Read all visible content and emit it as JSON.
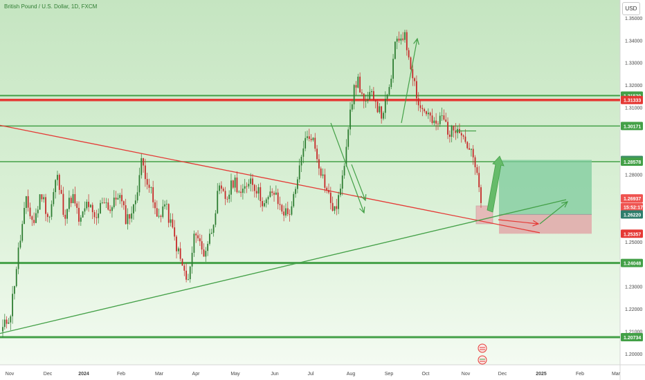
{
  "header": {
    "title": "British Pound / U.S. Dollar, 1D, FXCM",
    "currency_button": "USD"
  },
  "chart_data": {
    "type": "candlestick",
    "symbol": "British Pound / U.S. Dollar",
    "interval": "1D",
    "exchange": "FXCM",
    "currency": "USD",
    "x_ticks": [
      "Nov",
      "Dec",
      "2024",
      "Feb",
      "Mar",
      "Apr",
      "May",
      "Jun",
      "Jul",
      "Aug",
      "Sep",
      "Oct",
      "Nov",
      "Dec",
      "2025",
      "Feb",
      "Mar"
    ],
    "y_ticks": [
      "1.20000",
      "1.21000",
      "1.22000",
      "1.23000",
      "1.25000",
      "1.28000",
      "1.31000",
      "1.32000",
      "1.33000",
      "1.34000",
      "1.35000"
    ],
    "ylim": [
      1.195,
      1.358
    ],
    "path": [
      1.211,
      1.218,
      1.245,
      1.268,
      1.258,
      1.272,
      1.26,
      1.28,
      1.262,
      1.271,
      1.258,
      1.268,
      1.258,
      1.27,
      1.264,
      1.272,
      1.26,
      1.265,
      1.286,
      1.275,
      1.26,
      1.267,
      1.255,
      1.242,
      1.231,
      1.256,
      1.244,
      1.254,
      1.273,
      1.269,
      1.278,
      1.27,
      1.279,
      1.273,
      1.266,
      1.273,
      1.265,
      1.262,
      1.272,
      1.294,
      1.298,
      1.285,
      1.273,
      1.263,
      1.276,
      1.31,
      1.323,
      1.31,
      1.317,
      1.306,
      1.315,
      1.34,
      1.343,
      1.328,
      1.31,
      1.308,
      1.301,
      1.306,
      1.298,
      1.303,
      1.295,
      1.287,
      1.269
    ],
    "price_labels": [
      {
        "value": 1.31529,
        "label": "1.31529",
        "style": "green-line"
      },
      {
        "value": 1.31333,
        "label": "1.31333",
        "style": "red-line"
      },
      {
        "value": 1.30171,
        "label": "1.30171",
        "style": "green-line"
      },
      {
        "value": 1.28655,
        "label": "1.28655",
        "style": "box-top"
      },
      {
        "value": 1.28578,
        "label": "1.28578",
        "style": "green-line"
      },
      {
        "value": 1.26937,
        "label": "1.26937",
        "style": "current"
      },
      {
        "value": 1.2655,
        "label": "15:52:17",
        "style": "countdown"
      },
      {
        "value": 1.2622,
        "label": "1.26220",
        "style": "entry"
      },
      {
        "value": 1.25357,
        "label": "1.25357",
        "style": "stop"
      },
      {
        "value": 1.24048,
        "label": "1.24048",
        "style": "green-line"
      },
      {
        "value": 1.20734,
        "label": "1.20734",
        "style": "green-line"
      }
    ],
    "horizontal_levels": [
      {
        "value": 1.31529,
        "color": "#43a047",
        "width": 2
      },
      {
        "value": 1.31333,
        "color": "#e53935",
        "width": 3.5
      },
      {
        "value": 1.30171,
        "color": "#43a047",
        "width": 1.5
      },
      {
        "value": 1.28578,
        "color": "#43a047",
        "width": 1.5
      },
      {
        "value": 1.24048,
        "color": "#43a047",
        "width": 3
      },
      {
        "value": 1.20734,
        "color": "#43a047",
        "width": 3
      }
    ],
    "trend_lines": [
      {
        "from": [
          "Oct 2023",
          1.302
        ],
        "to": [
          "Dec 2024",
          1.254
        ],
        "color": "#e53935"
      },
      {
        "from": [
          "Oct 2023",
          1.209
        ],
        "to": [
          "Dec 2024",
          1.266
        ],
        "color": "#43a047"
      }
    ],
    "long_position": {
      "entry": 1.2622,
      "target": 1.28655,
      "stop": 1.25357
    },
    "colors": {
      "up": "#2e7d32",
      "down": "#c62828",
      "background_top": "#c8e6c4",
      "background_bottom": "#f4fbf2",
      "target_zone": "#7ecb9c",
      "stop_zone": "#e2a9a9"
    }
  }
}
